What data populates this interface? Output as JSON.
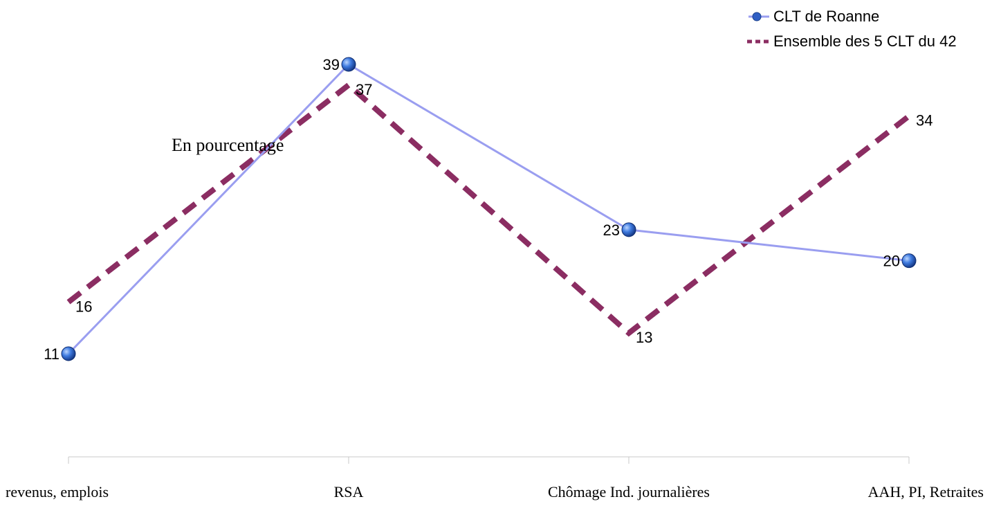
{
  "chart_data": {
    "type": "line",
    "categories": [
      "revenus, emplois",
      "RSA",
      "Chômage Ind. journalières",
      "AAH, PI, Retraites"
    ],
    "series": [
      {
        "name": "CLT de Roanne",
        "values": [
          11,
          39,
          23,
          20
        ],
        "color": "#9a9ef0",
        "marker_color": "#2f5fc4",
        "style": "solid-with-markers"
      },
      {
        "name": "Ensemble des 5 CLT du 42",
        "values": [
          16,
          37,
          13,
          34
        ],
        "color": "#8b2d62",
        "style": "dashed"
      }
    ],
    "annotation": "En pourcentage",
    "title": "",
    "xlabel": "",
    "ylabel": "",
    "y_axis_visible": false,
    "grid": false,
    "legend_position": "top-right"
  }
}
